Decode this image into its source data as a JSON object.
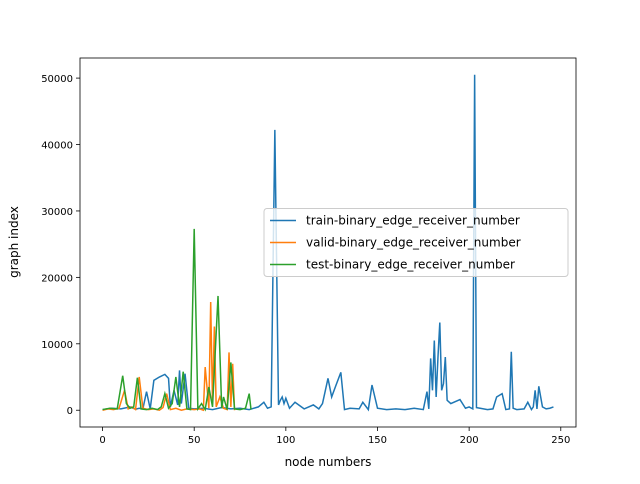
{
  "chart_data": {
    "type": "line",
    "xlabel": "node numbers",
    "ylabel": "graph index",
    "xlim": [
      -12.3,
      258.3
    ],
    "ylim": [
      -2525,
      53025
    ],
    "xticks": [
      0,
      50,
      100,
      150,
      200,
      250
    ],
    "yticks": [
      0,
      10000,
      20000,
      30000,
      40000,
      50000
    ],
    "legend": "center right",
    "series": [
      {
        "name": "train-binary_edge_receiver_number",
        "color": "#1f77b4",
        "x": [
          0,
          5,
          10,
          15,
          18,
          20,
          22,
          24,
          26,
          28,
          31,
          34,
          36,
          37,
          39,
          41,
          42,
          43,
          45,
          47,
          50,
          55,
          60,
          65,
          70,
          75,
          80,
          85,
          88,
          90,
          92,
          94,
          96,
          97,
          98,
          99,
          100,
          102,
          105,
          110,
          115,
          118,
          120,
          123,
          125,
          127,
          130,
          132,
          135,
          140,
          142,
          145,
          147,
          150,
          155,
          160,
          165,
          170,
          175,
          177,
          178,
          179,
          180,
          181,
          182,
          183,
          184,
          185,
          186,
          187,
          188,
          190,
          195,
          198,
          200,
          202,
          203,
          204,
          206,
          210,
          213,
          215,
          218,
          220,
          222,
          223,
          224,
          226,
          230,
          232,
          234,
          235,
          236,
          237,
          238,
          240,
          242,
          244,
          246
        ],
        "values": [
          100,
          300,
          200,
          500,
          150,
          300,
          200,
          2800,
          200,
          4500,
          5000,
          5400,
          4800,
          500,
          3000,
          800,
          6000,
          1000,
          5500,
          300,
          200,
          300,
          100,
          400,
          200,
          300,
          100,
          500,
          1200,
          300,
          500,
          42200,
          800,
          1500,
          2000,
          1000,
          1800,
          300,
          1200,
          200,
          800,
          200,
          1000,
          4800,
          2000,
          3500,
          5700,
          100,
          300,
          200,
          1200,
          100,
          3800,
          300,
          100,
          200,
          100,
          300,
          100,
          2800,
          200,
          7800,
          3000,
          10500,
          2000,
          8000,
          13200,
          3000,
          4000,
          8000,
          1500,
          1000,
          1600,
          300,
          500,
          200,
          50500,
          400,
          300,
          100,
          200,
          2000,
          2500,
          100,
          200,
          8800,
          300,
          100,
          200,
          1200,
          100,
          500,
          3000,
          200,
          3600,
          500,
          200,
          300,
          500
        ]
      },
      {
        "name": "valid-binary_edge_receiver_number",
        "color": "#ff7f0e",
        "x": [
          0,
          3,
          6,
          9,
          12,
          14,
          16,
          18,
          20,
          22,
          25,
          28,
          31,
          33,
          35,
          37,
          40,
          43,
          46,
          50,
          53,
          55,
          56,
          58,
          59,
          60,
          61,
          62,
          64,
          66,
          68,
          69,
          70,
          71,
          72
        ],
        "values": [
          0,
          200,
          100,
          300,
          3000,
          200,
          500,
          100,
          5000,
          300,
          100,
          200,
          0,
          400,
          2500,
          100,
          300,
          0,
          200,
          100,
          200,
          0,
          6500,
          300,
          16300,
          1000,
          12600,
          500,
          2000,
          300,
          100,
          8700,
          500,
          7000,
          0
        ]
      },
      {
        "name": "test-binary_edge_receiver_number",
        "color": "#2ca02c",
        "x": [
          0,
          4,
          8,
          11,
          13,
          15,
          17,
          19,
          21,
          24,
          27,
          30,
          32,
          34,
          36,
          38,
          40,
          42,
          44,
          46,
          48,
          50,
          52,
          54,
          56,
          58,
          60,
          63,
          65,
          66,
          68,
          70,
          72,
          75,
          78,
          80,
          81
        ],
        "values": [
          100,
          300,
          200,
          5200,
          1000,
          300,
          500,
          4900,
          200,
          100,
          300,
          100,
          500,
          2500,
          300,
          1000,
          5000,
          500,
          5800,
          200,
          100,
          27300,
          200,
          1000,
          100,
          3500,
          500,
          17200,
          300,
          2000,
          100,
          7200,
          200,
          100,
          300,
          2500,
          100
        ]
      }
    ]
  }
}
